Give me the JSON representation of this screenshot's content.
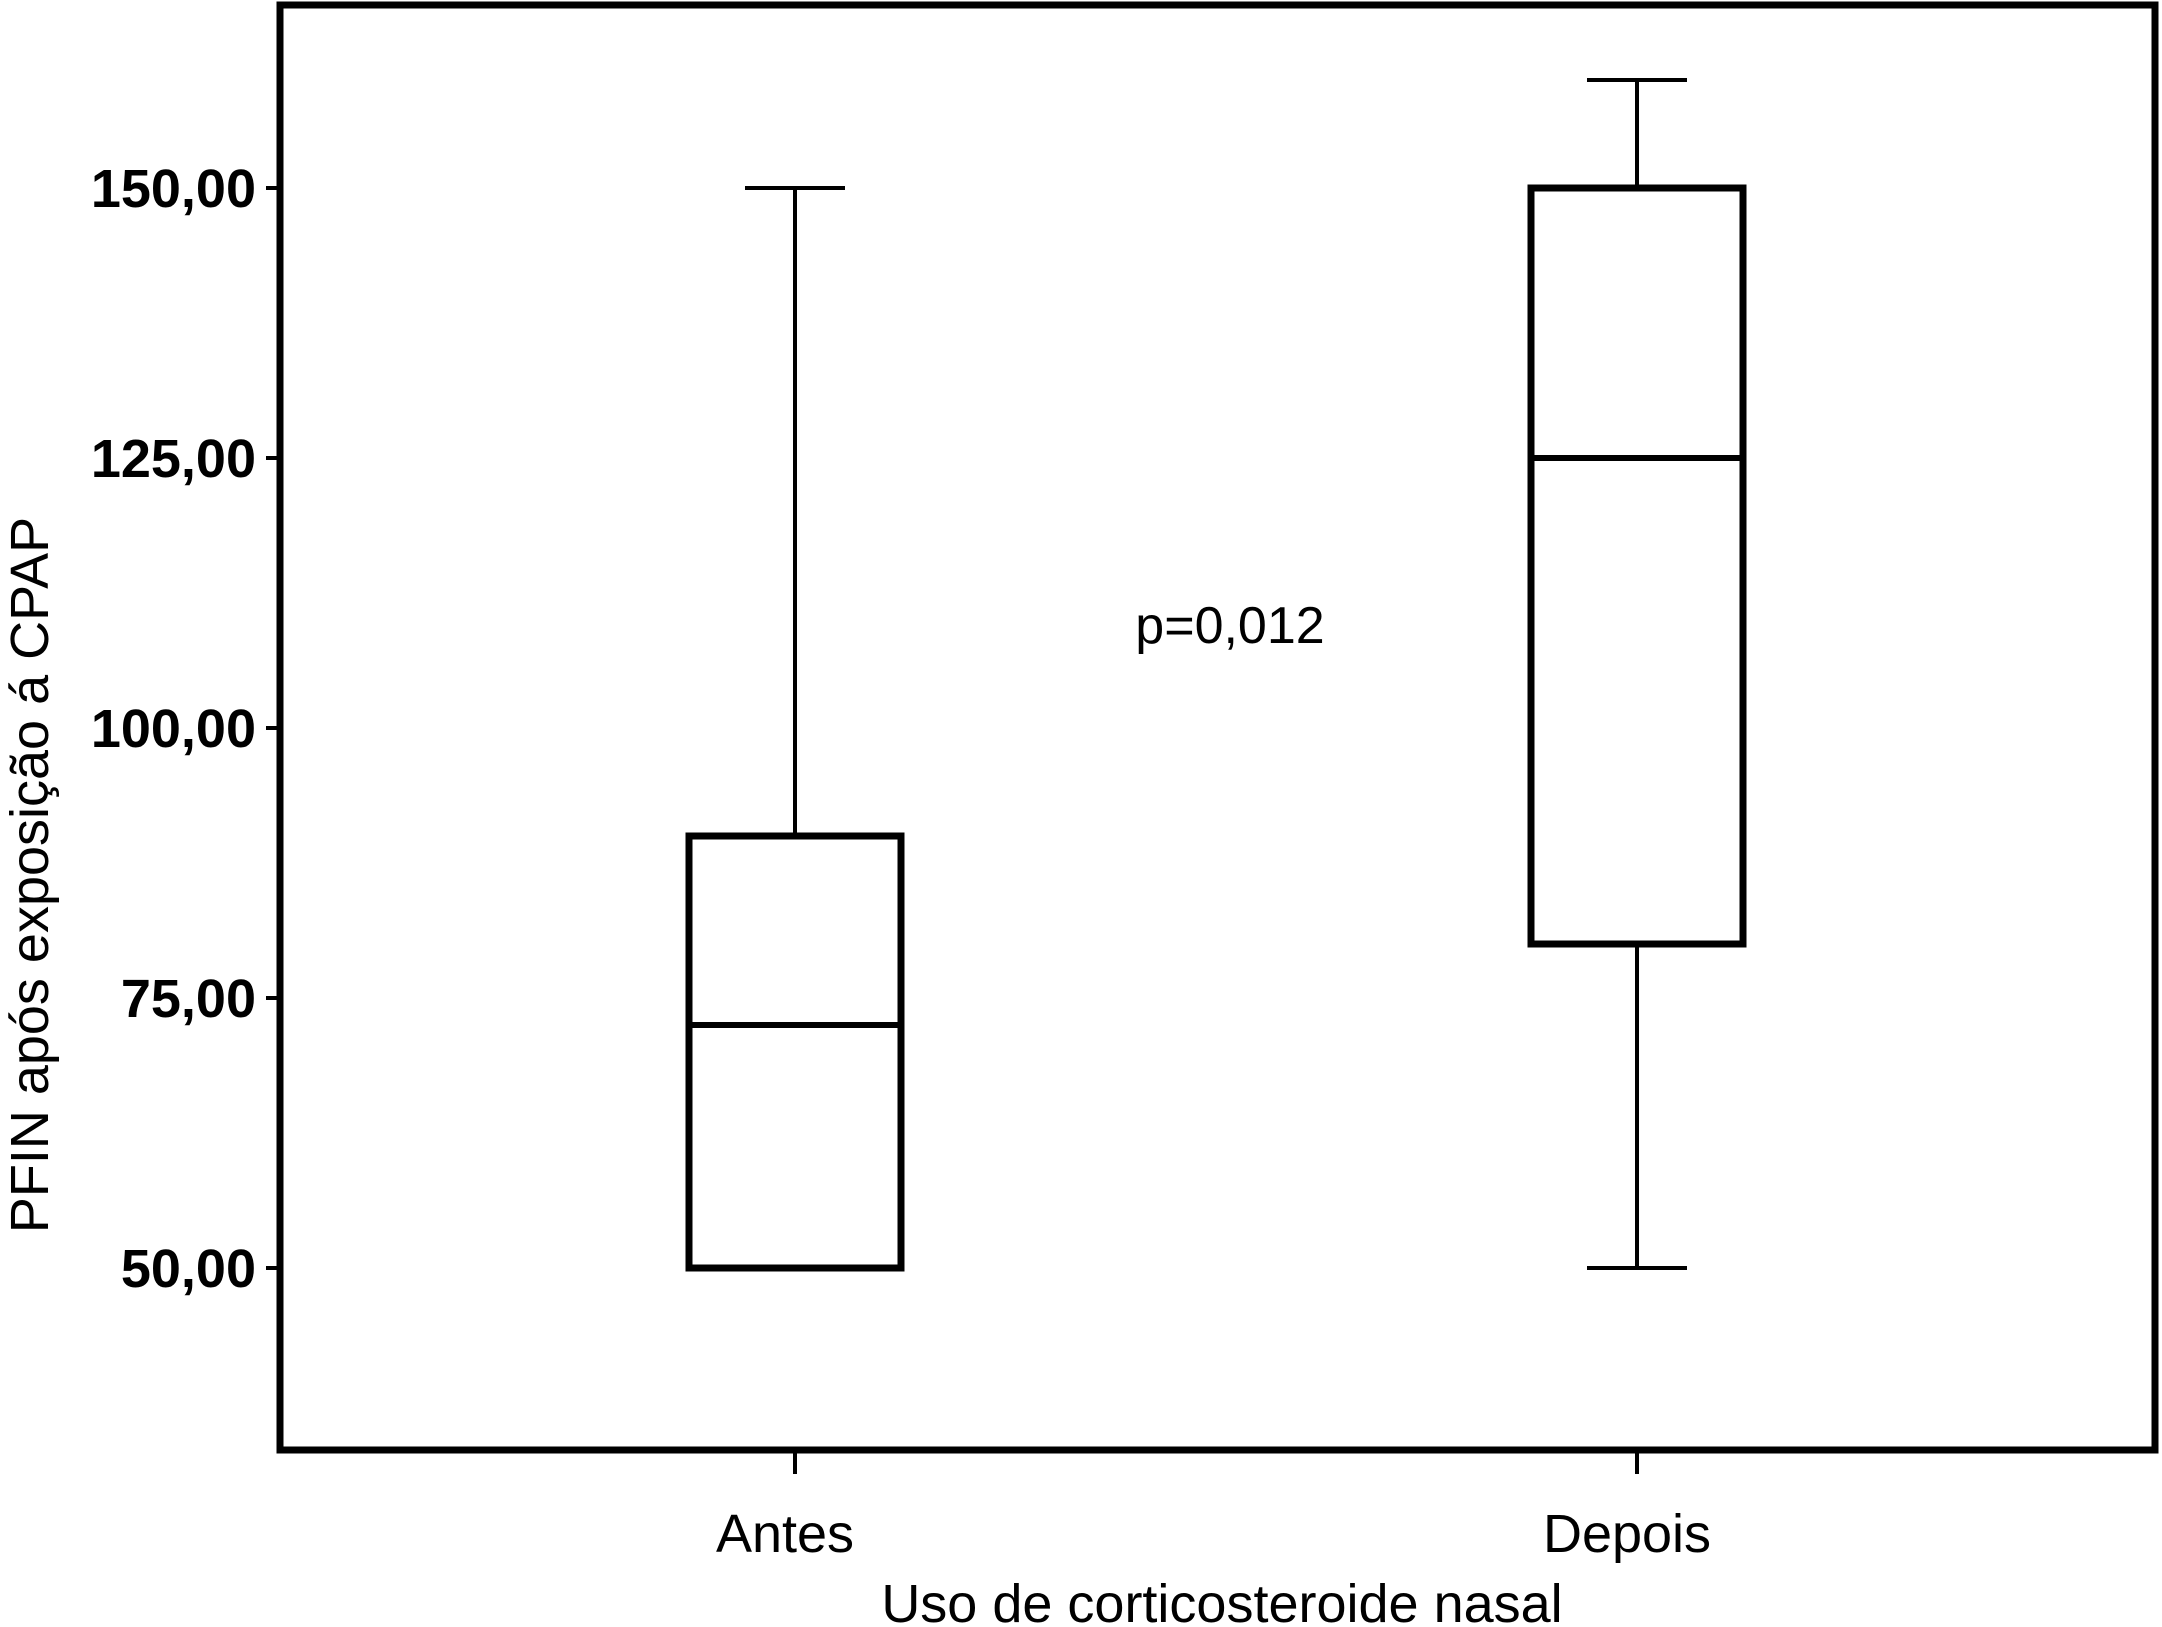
{
  "chart_data": {
    "type": "box",
    "categories": [
      "Antes",
      "Depois"
    ],
    "boxes": [
      {
        "category": "Antes",
        "min": 50,
        "q1": 50,
        "median": 72.5,
        "q3": 90,
        "max": 150
      },
      {
        "category": "Depois",
        "min": 50,
        "q1": 80,
        "median": 125,
        "q3": 150,
        "max": 160
      }
    ],
    "xlabel": "Uso de corticosteroide nasal",
    "ylabel": "PFIN após exposição á CPAP",
    "ylim": [
      34,
      167
    ],
    "yticks": [
      50,
      75,
      100,
      125,
      150
    ],
    "ytick_labels": [
      "50,00",
      "75,00",
      "100,00",
      "125,00",
      "150,00"
    ],
    "annotation": "p=0,012",
    "grid": false,
    "legend": "none",
    "colors": {
      "box_fill": "#ffffff",
      "stroke": "#000000"
    }
  }
}
